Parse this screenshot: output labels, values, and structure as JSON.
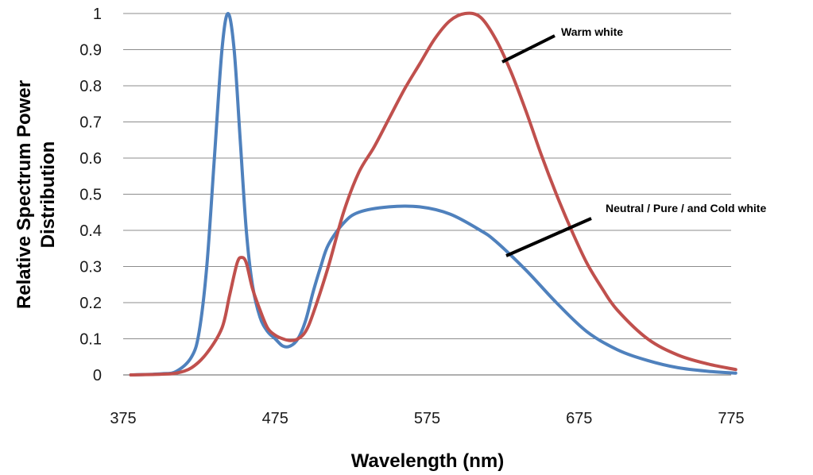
{
  "chart_data": {
    "type": "line",
    "xlabel": "Wavelength (nm)",
    "ylabel_lines": [
      "Relative Spectrum Power",
      "Distribution"
    ],
    "xlim": [
      375,
      775
    ],
    "ylim": [
      0,
      1
    ],
    "x_ticks": [
      375,
      475,
      575,
      675,
      775
    ],
    "y_ticks": [
      0,
      0.1,
      0.2,
      0.3,
      0.4,
      0.5,
      0.6,
      0.7,
      0.8,
      0.9,
      1
    ],
    "x_tick_labels": [
      "375",
      "475",
      "575",
      "675",
      "775"
    ],
    "y_tick_labels": [
      "0",
      "0.1",
      "0.2",
      "0.3",
      "0.4",
      "0.5",
      "0.6",
      "0.7",
      "0.8",
      "0.9",
      "1"
    ],
    "grid": "horizontal",
    "series": [
      {
        "key": "neutral",
        "color": "#4f81bd",
        "points": [
          [
            380,
            0
          ],
          [
            400,
            0.003
          ],
          [
            410,
            0.01
          ],
          [
            420,
            0.05
          ],
          [
            425,
            0.12
          ],
          [
            430,
            0.3
          ],
          [
            435,
            0.6
          ],
          [
            440,
            0.9
          ],
          [
            444,
            1.0
          ],
          [
            448,
            0.9
          ],
          [
            452,
            0.65
          ],
          [
            456,
            0.4
          ],
          [
            460,
            0.25
          ],
          [
            465,
            0.16
          ],
          [
            470,
            0.12
          ],
          [
            475,
            0.1
          ],
          [
            480,
            0.08
          ],
          [
            485,
            0.08
          ],
          [
            490,
            0.1
          ],
          [
            495,
            0.15
          ],
          [
            500,
            0.23
          ],
          [
            505,
            0.3
          ],
          [
            510,
            0.36
          ],
          [
            520,
            0.42
          ],
          [
            530,
            0.45
          ],
          [
            550,
            0.465
          ],
          [
            570,
            0.465
          ],
          [
            590,
            0.445
          ],
          [
            610,
            0.4
          ],
          [
            620,
            0.37
          ],
          [
            640,
            0.29
          ],
          [
            660,
            0.2
          ],
          [
            680,
            0.12
          ],
          [
            700,
            0.07
          ],
          [
            720,
            0.04
          ],
          [
            740,
            0.02
          ],
          [
            760,
            0.01
          ],
          [
            778,
            0.005
          ]
        ]
      },
      {
        "key": "warm",
        "color": "#c0504d",
        "points": [
          [
            380,
            0
          ],
          [
            400,
            0.002
          ],
          [
            410,
            0.005
          ],
          [
            420,
            0.02
          ],
          [
            430,
            0.06
          ],
          [
            440,
            0.13
          ],
          [
            445,
            0.22
          ],
          [
            450,
            0.31
          ],
          [
            453,
            0.325
          ],
          [
            456,
            0.31
          ],
          [
            460,
            0.24
          ],
          [
            465,
            0.18
          ],
          [
            470,
            0.13
          ],
          [
            475,
            0.11
          ],
          [
            480,
            0.1
          ],
          [
            485,
            0.095
          ],
          [
            490,
            0.1
          ],
          [
            495,
            0.12
          ],
          [
            500,
            0.17
          ],
          [
            510,
            0.3
          ],
          [
            520,
            0.45
          ],
          [
            530,
            0.56
          ],
          [
            540,
            0.63
          ],
          [
            550,
            0.71
          ],
          [
            560,
            0.79
          ],
          [
            570,
            0.86
          ],
          [
            580,
            0.93
          ],
          [
            590,
            0.98
          ],
          [
            600,
            1.0
          ],
          [
            610,
            0.99
          ],
          [
            620,
            0.93
          ],
          [
            630,
            0.84
          ],
          [
            640,
            0.73
          ],
          [
            650,
            0.61
          ],
          [
            660,
            0.5
          ],
          [
            670,
            0.4
          ],
          [
            680,
            0.31
          ],
          [
            690,
            0.24
          ],
          [
            700,
            0.18
          ],
          [
            720,
            0.1
          ],
          [
            740,
            0.055
          ],
          [
            760,
            0.03
          ],
          [
            778,
            0.015
          ]
        ]
      }
    ],
    "annotations": [
      {
        "text": "Warm white",
        "series": "warm"
      },
      {
        "text": "Neutral / Pure / and Cold white",
        "series": "neutral"
      }
    ]
  }
}
